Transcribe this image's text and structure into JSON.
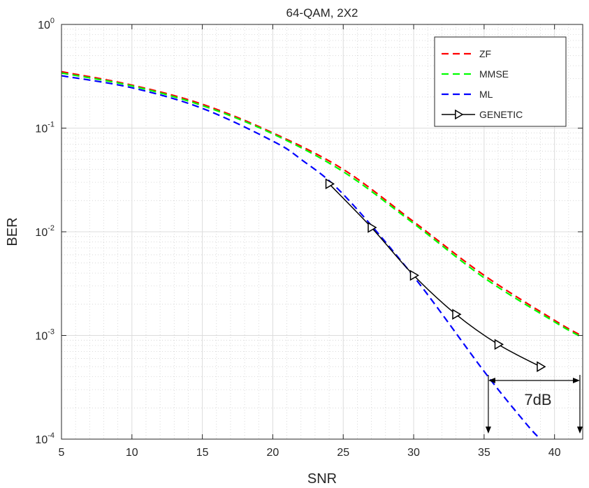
{
  "chart_data": {
    "type": "line",
    "title": "64-QAM, 2X2",
    "xlabel": "SNR",
    "ylabel": "BER",
    "xlim": [
      5,
      42
    ],
    "ylim": [
      0.0001,
      1
    ],
    "yscale": "log",
    "grid": true,
    "minor_grid": true,
    "legend_position": "top-right",
    "x_ticks": [
      5,
      10,
      15,
      20,
      25,
      30,
      35,
      40
    ],
    "y_ticks": [
      {
        "value": 1,
        "base": "10",
        "exp": "0"
      },
      {
        "value": 0.1,
        "base": "10",
        "exp": "-1"
      },
      {
        "value": 0.01,
        "base": "10",
        "exp": "-2"
      },
      {
        "value": 0.001,
        "base": "10",
        "exp": "-3"
      },
      {
        "value": 0.0001,
        "base": "10",
        "exp": "-4"
      }
    ],
    "series": [
      {
        "name": "ZF",
        "color": "#ff0000",
        "style": "dashed",
        "marker": "none",
        "x": [
          5,
          10,
          15,
          20,
          25,
          30,
          35,
          40,
          42
        ],
        "y": [
          0.35,
          0.26,
          0.17,
          0.09,
          0.04,
          0.0125,
          0.0038,
          0.0014,
          0.00098
        ]
      },
      {
        "name": "MMSE",
        "color": "#00ff00",
        "style": "dashed",
        "marker": "none",
        "x": [
          5,
          10,
          15,
          20,
          25,
          30,
          35,
          40,
          42
        ],
        "y": [
          0.34,
          0.255,
          0.165,
          0.088,
          0.038,
          0.012,
          0.0036,
          0.00135,
          0.00095
        ]
      },
      {
        "name": "ML",
        "color": "#0000ff",
        "style": "dashed",
        "marker": "none",
        "x": [
          5,
          10,
          15,
          20,
          22,
          25,
          30,
          35,
          38,
          39
        ],
        "y": [
          0.32,
          0.245,
          0.155,
          0.075,
          0.05,
          0.023,
          0.0037,
          0.00045,
          0.00014,
          0.0001
        ]
      },
      {
        "name": "GENETIC",
        "color": "#000000",
        "style": "solid",
        "marker": "triangle-right",
        "x": [
          24,
          27,
          30,
          33,
          36,
          39
        ],
        "y": [
          0.029,
          0.011,
          0.0038,
          0.0016,
          0.00082,
          0.0005
        ]
      }
    ],
    "annotation": {
      "text": "7dB",
      "from_x": 35.3,
      "to_x": 41.8
    }
  }
}
